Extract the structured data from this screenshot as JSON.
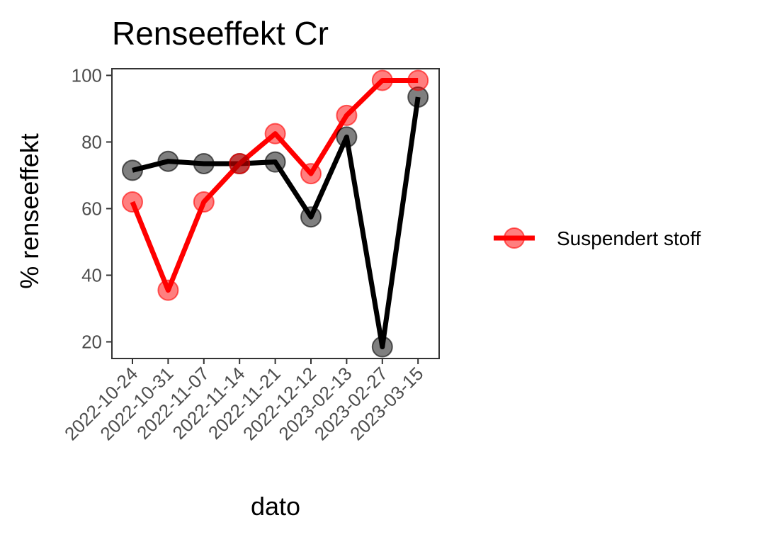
{
  "chart_data": {
    "type": "line",
    "title": "Renseeffekt Cr",
    "xlabel": "dato",
    "ylabel": "% renseeffekt",
    "categories": [
      "2022-10-24",
      "2022-10-31",
      "2022-11-07",
      "2022-11-14",
      "2022-11-21",
      "2022-12-12",
      "2023-02-13",
      "2023-02-27",
      "2023-03-15"
    ],
    "ylim": [
      15,
      102
    ],
    "yticks": [
      20,
      40,
      60,
      80,
      100
    ],
    "grid": false,
    "legend_position": "right",
    "series": [
      {
        "color": "#000000",
        "values": [
          71.5,
          74.2,
          73.5,
          73.5,
          74.0,
          57.5,
          81.5,
          18.5,
          93.5
        ]
      },
      {
        "name": "Suspendert stoff",
        "color": "#ff0000",
        "values": [
          62.0,
          35.5,
          62.0,
          73.5,
          82.5,
          70.5,
          88.0,
          98.5,
          98.5
        ]
      }
    ],
    "legend": [
      {
        "label": "Suspendert stoff",
        "color": "#ff0000"
      }
    ]
  }
}
